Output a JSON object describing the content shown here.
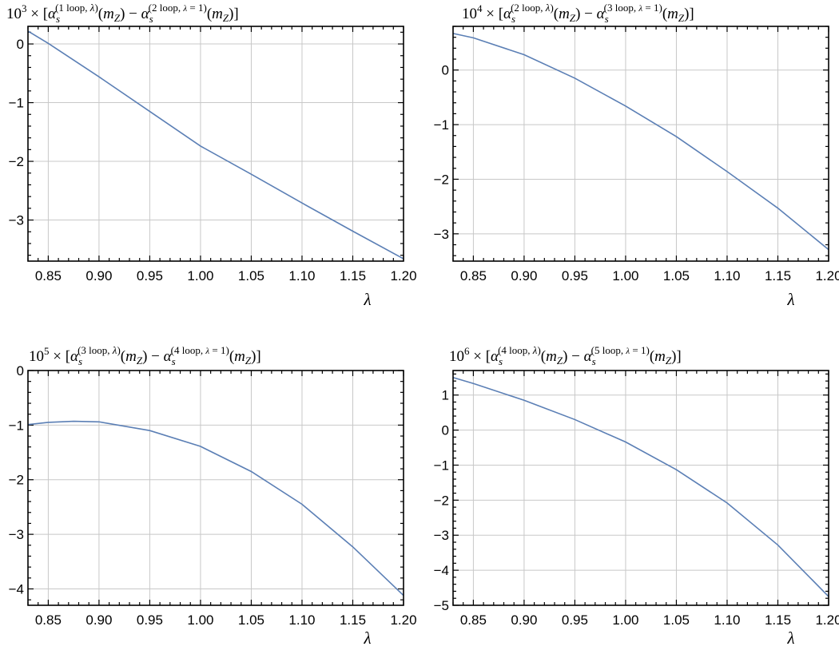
{
  "chart_data": [
    {
      "type": "line",
      "title": {
        "power": "3",
        "a_loop": "1 loop",
        "b_loop": "2 loop"
      },
      "xlabel": "λ",
      "xlim": [
        0.83,
        1.2
      ],
      "ylim": [
        -3.7,
        0.3
      ],
      "xticks": [
        "0.85",
        "0.90",
        "0.95",
        "1.00",
        "1.05",
        "1.10",
        "1.15",
        "1.20"
      ],
      "yticks": [
        "0",
        "−1",
        "−2",
        "−3"
      ],
      "grid": true,
      "series": [
        {
          "color": "#5b7fb5",
          "x": [
            0.83,
            0.85,
            0.9,
            0.95,
            1.0,
            1.05,
            1.1,
            1.15,
            1.2
          ],
          "y": [
            0.22,
            0.01,
            -0.56,
            -1.15,
            -1.74,
            -2.22,
            -2.71,
            -3.19,
            -3.66
          ]
        }
      ]
    },
    {
      "type": "line",
      "title": {
        "power": "4",
        "a_loop": "2 loop",
        "b_loop": "3 loop"
      },
      "xlabel": "λ",
      "xlim": [
        0.83,
        1.2
      ],
      "ylim": [
        -3.5,
        0.8
      ],
      "xticks": [
        "0.85",
        "0.90",
        "0.95",
        "1.00",
        "1.05",
        "1.10",
        "1.15",
        "1.20"
      ],
      "yticks": [
        "0",
        "−1",
        "−2",
        "−3"
      ],
      "grid": true,
      "series": [
        {
          "color": "#5b7fb5",
          "x": [
            0.83,
            0.85,
            0.9,
            0.95,
            1.0,
            1.05,
            1.1,
            1.15,
            1.2
          ],
          "y": [
            0.67,
            0.59,
            0.28,
            -0.15,
            -0.66,
            -1.22,
            -1.86,
            -2.53,
            -3.29
          ]
        }
      ]
    },
    {
      "type": "line",
      "title": {
        "power": "5",
        "a_loop": "3 loop",
        "b_loop": "4 loop"
      },
      "xlabel": "λ",
      "xlim": [
        0.83,
        1.2
      ],
      "ylim": [
        -4.3,
        0.0
      ],
      "xticks": [
        "0.85",
        "0.90",
        "0.95",
        "1.00",
        "1.05",
        "1.10",
        "1.15",
        "1.20"
      ],
      "yticks": [
        "0",
        "−1",
        "−2",
        "−3",
        "−4"
      ],
      "grid": true,
      "series": [
        {
          "color": "#5b7fb5",
          "x": [
            0.83,
            0.85,
            0.875,
            0.9,
            0.95,
            1.0,
            1.05,
            1.1,
            1.15,
            1.2
          ],
          "y": [
            -0.99,
            -0.95,
            -0.93,
            -0.94,
            -1.1,
            -1.39,
            -1.85,
            -2.45,
            -3.23,
            -4.12
          ]
        }
      ]
    },
    {
      "type": "line",
      "title": {
        "power": "6",
        "a_loop": "4 loop",
        "b_loop": "5 loop"
      },
      "xlabel": "λ",
      "xlim": [
        0.83,
        1.2
      ],
      "ylim": [
        -5.0,
        1.7
      ],
      "xticks": [
        "0.85",
        "0.90",
        "0.95",
        "1.00",
        "1.05",
        "1.10",
        "1.15",
        "1.20"
      ],
      "yticks": [
        "1",
        "0",
        "−1",
        "−2",
        "−3",
        "−4",
        "−5"
      ],
      "grid": true,
      "series": [
        {
          "color": "#5b7fb5",
          "x": [
            0.83,
            0.85,
            0.9,
            0.95,
            1.0,
            1.05,
            1.1,
            1.15,
            1.2
          ],
          "y": [
            1.5,
            1.33,
            0.85,
            0.3,
            -0.34,
            -1.13,
            -2.08,
            -3.28,
            -4.75
          ]
        }
      ]
    }
  ]
}
